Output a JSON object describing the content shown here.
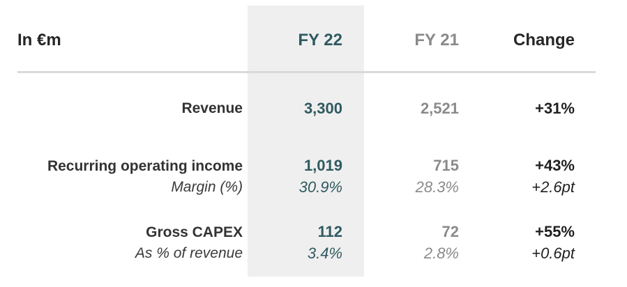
{
  "header": {
    "unit_label": "In €m",
    "col_fy22": "FY 22",
    "col_fy21": "FY 21",
    "col_change": "Change"
  },
  "rows": [
    {
      "label": "Revenue",
      "fy22": "3,300",
      "fy21": "2,521",
      "change": "+31%"
    },
    {
      "label": "Recurring operating income",
      "fy22": "1,019",
      "fy21": "715",
      "change": "+43%",
      "sub_label": "Margin (%)",
      "sub_fy22": "30.9%",
      "sub_fy21": "28.3%",
      "sub_change": "+2.6pt"
    },
    {
      "label": "Gross CAPEX",
      "fy22": "112",
      "fy21": "72",
      "change": "+55%",
      "sub_label": "As % of revenue",
      "sub_fy22": "3.4%",
      "sub_fy21": "2.8%",
      "sub_change": "+0.6pt"
    }
  ],
  "colors": {
    "fy22_accent": "#2f5a60",
    "fy21_muted": "#8a8a8a",
    "highlight_bg": "#efefef",
    "divider": "#d9d9d9"
  }
}
